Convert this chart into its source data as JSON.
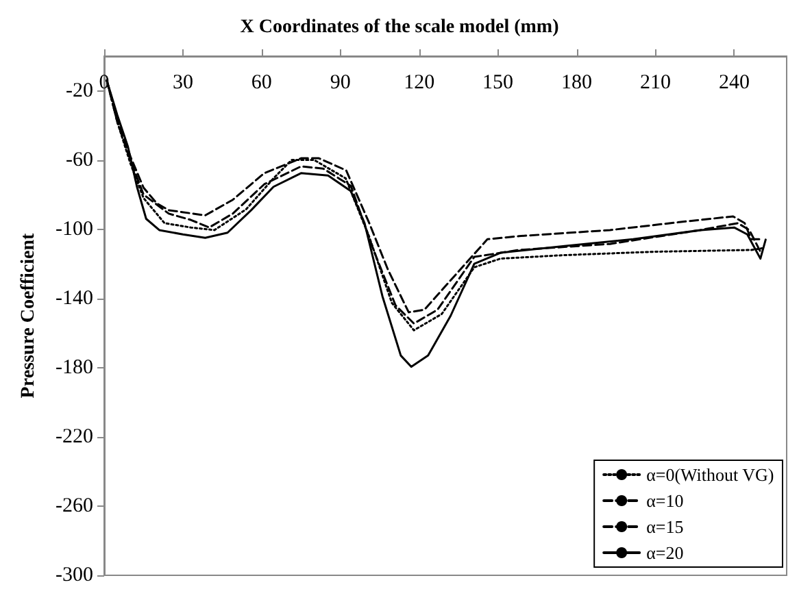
{
  "chart_data": {
    "type": "line",
    "title": "X Coordinates of the scale model (mm)",
    "ylabel": "Pressure Coefficient",
    "xlim": [
      0,
      260
    ],
    "xticks": [
      0,
      30,
      60,
      90,
      120,
      150,
      180,
      210,
      240
    ],
    "ylim": [
      -300,
      0
    ],
    "yticks": [
      -300,
      -260,
      -220,
      -180,
      -140,
      -100,
      -60,
      -20
    ],
    "grid": false,
    "legend": "bottom right",
    "marker": "none",
    "series": [
      {
        "name": "α=0(Without VG)",
        "color": "#000000",
        "line_style": "dotted",
        "x": [
          1,
          5,
          10,
          15,
          23,
          33,
          42,
          54,
          64.5,
          71.4,
          80,
          92,
          101,
          109.6,
          118,
          128.6,
          141,
          151,
          175,
          210,
          246.5,
          250.7
        ],
        "values": [
          -14,
          -38,
          -62,
          -82,
          -96.5,
          -99,
          -100.5,
          -88.6,
          -70.6,
          -60,
          -60,
          -70.6,
          -104.5,
          -142.6,
          -158.4,
          -149,
          -122,
          -117,
          -115,
          -113,
          -112,
          -111
        ]
      },
      {
        "name": "α=10",
        "color": "#000000",
        "line_style": "dashed",
        "x": [
          1,
          5,
          10,
          15,
          24.6,
          33,
          40,
          49,
          61,
          75,
          83.5,
          94,
          102.6,
          111,
          118,
          127,
          141,
          158,
          192.7,
          227,
          241.4,
          245.8,
          250
        ],
        "values": [
          -14,
          -38,
          -60,
          -80,
          -91,
          -94.6,
          -99,
          -91,
          -74,
          -63.7,
          -65,
          -75,
          -112,
          -144,
          -154.5,
          -146.5,
          -116,
          -112,
          -108.5,
          -100.5,
          -96.5,
          -100.5,
          -113
        ]
      },
      {
        "name": "α=15",
        "color": "#000000",
        "line_style": "dashed",
        "x": [
          1,
          5,
          10,
          15,
          20,
          24.6,
          38.5,
          49,
          61,
          75,
          81.8,
          92.2,
          101,
          108,
          116,
          122,
          132,
          146,
          158,
          192.7,
          218.6,
          239.6,
          244,
          246.5,
          250.7
        ],
        "values": [
          -14,
          -36,
          -58,
          -76,
          -85,
          -89,
          -92,
          -83,
          -67.6,
          -59,
          -59,
          -66,
          -96.5,
          -123,
          -148,
          -146.5,
          -129.5,
          -105.8,
          -104,
          -100.5,
          -96,
          -92.6,
          -96.5,
          -105.8,
          -105.8
        ]
      },
      {
        "name": "α=20",
        "color": "#000000",
        "line_style": "solid",
        "x": [
          1,
          5,
          9,
          12.5,
          16,
          21,
          30,
          38.5,
          47,
          56,
          64.5,
          75,
          85.3,
          94,
          99.2,
          106,
          113,
          117,
          123.4,
          132,
          141,
          151,
          175.4,
          201.5,
          227.4,
          240,
          245,
          250,
          252
        ],
        "values": [
          -14,
          -34,
          -52,
          -75.5,
          -94,
          -100.5,
          -103,
          -105,
          -102,
          -89,
          -75.5,
          -67.6,
          -69,
          -78,
          -96.5,
          -138.7,
          -173,
          -179.5,
          -173,
          -150,
          -120,
          -113.6,
          -109.7,
          -105.8,
          -100.5,
          -99,
          -103,
          -117,
          -106
        ]
      }
    ]
  }
}
